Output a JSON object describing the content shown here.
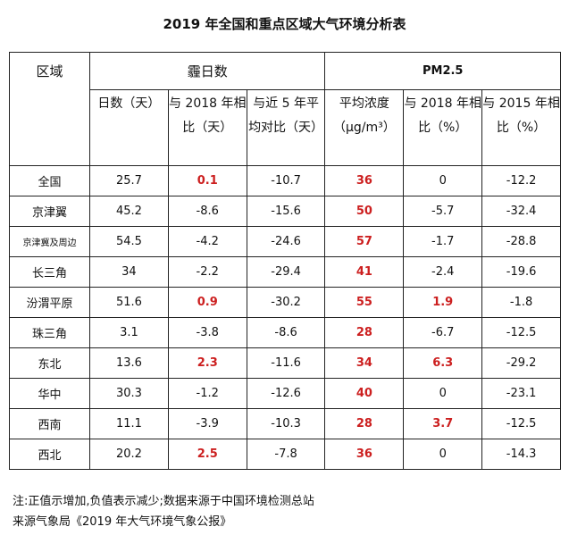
{
  "title": "2019 年全国和重点区域大气环境分析表",
  "headers": {
    "region": "区域",
    "haze": "霾日数",
    "pm": "PM2.5",
    "sub": [
      "日数（天）",
      "与 2018 年相比（天）",
      "与近 5 年平均对比（天）",
      "平均浓度（μg/m³）",
      "与 2018 年相比（%）",
      "与 2015 年相比（%）"
    ]
  },
  "colors": {
    "positive": "#cc1f1f"
  },
  "rows": [
    {
      "region": "全国",
      "v": [
        "25.7",
        "0.1",
        "-10.7",
        "36",
        "0",
        "-12.2"
      ],
      "red": [
        1,
        3
      ]
    },
    {
      "region": "京津翼",
      "v": [
        "45.2",
        "-8.6",
        "-15.6",
        "50",
        "-5.7",
        "-32.4"
      ],
      "red": [
        3
      ]
    },
    {
      "region": "京津冀及周边",
      "v": [
        "54.5",
        "-4.2",
        "-24.6",
        "57",
        "-1.7",
        "-28.8"
      ],
      "red": [
        3
      ],
      "small": true
    },
    {
      "region": "长三角",
      "v": [
        "34",
        "-2.2",
        "-29.4",
        "41",
        "-2.4",
        "-19.6"
      ],
      "red": [
        3
      ]
    },
    {
      "region": "汾渭平原",
      "v": [
        "51.6",
        "0.9",
        "-30.2",
        "55",
        "1.9",
        "-1.8"
      ],
      "red": [
        1,
        3,
        4
      ]
    },
    {
      "region": "珠三角",
      "v": [
        "3.1",
        "-3.8",
        "-8.6",
        "28",
        "-6.7",
        "-12.5"
      ],
      "red": [
        3
      ]
    },
    {
      "region": "东北",
      "v": [
        "13.6",
        "2.3",
        "-11.6",
        "34",
        "6.3",
        "-29.2"
      ],
      "red": [
        1,
        3,
        4
      ]
    },
    {
      "region": "华中",
      "v": [
        "30.3",
        "-1.2",
        "-12.6",
        "40",
        "0",
        "-23.1"
      ],
      "red": [
        3
      ]
    },
    {
      "region": "西南",
      "v": [
        "11.1",
        "-3.9",
        "-10.3",
        "28",
        "3.7",
        "-12.5"
      ],
      "red": [
        3,
        4
      ]
    },
    {
      "region": "西北",
      "v": [
        "20.2",
        "2.5",
        "-7.8",
        "36",
        "0",
        "-14.3"
      ],
      "red": [
        1,
        3
      ]
    }
  ],
  "notes": [
    "注:正值示增加,负值表示减少;数据来源于中国环境检测总站",
    "来源气象局《2019 年大气环境气象公报》"
  ]
}
